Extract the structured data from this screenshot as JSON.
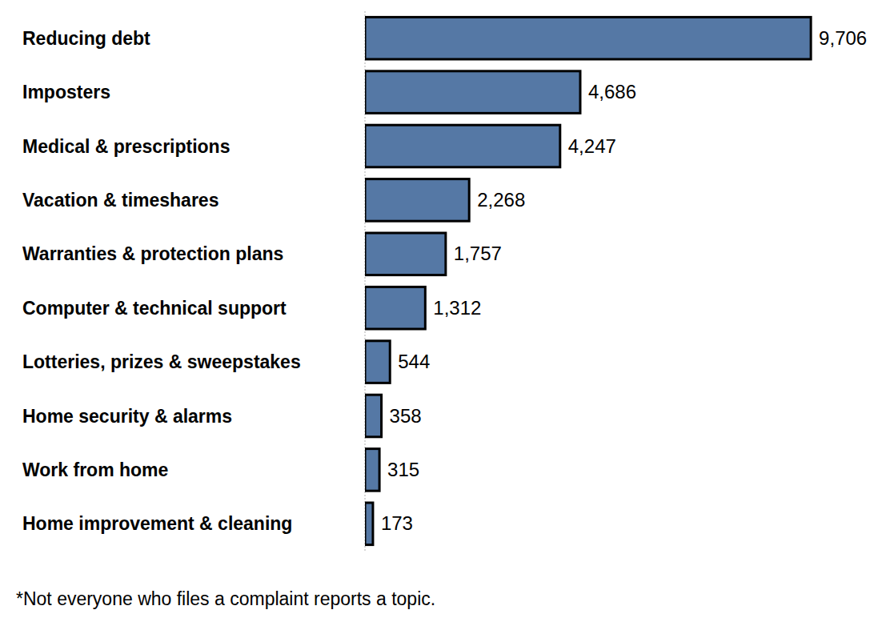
{
  "chart_data": {
    "type": "bar",
    "orientation": "horizontal",
    "categories": [
      "Reducing debt",
      "Imposters",
      "Medical & prescriptions",
      "Vacation & timeshares",
      "Warranties & protection plans",
      "Computer & technical support",
      "Lotteries, prizes & sweepstakes",
      "Home security & alarms",
      "Work from home",
      "Home improvement & cleaning"
    ],
    "values": [
      9706,
      4686,
      4247,
      2268,
      1757,
      1312,
      544,
      358,
      315,
      173
    ],
    "value_labels": [
      "9,706",
      "4,686",
      "4,247",
      "2,268",
      "1,757",
      "1,312",
      "544",
      "358",
      "315",
      "173"
    ],
    "color": "#5578a5",
    "xlim": [
      0,
      10000
    ],
    "data_labels": true,
    "tick_labels": "y",
    "grid": false,
    "annotations": [
      "*Not everyone who files a complaint reports a topic."
    ]
  }
}
